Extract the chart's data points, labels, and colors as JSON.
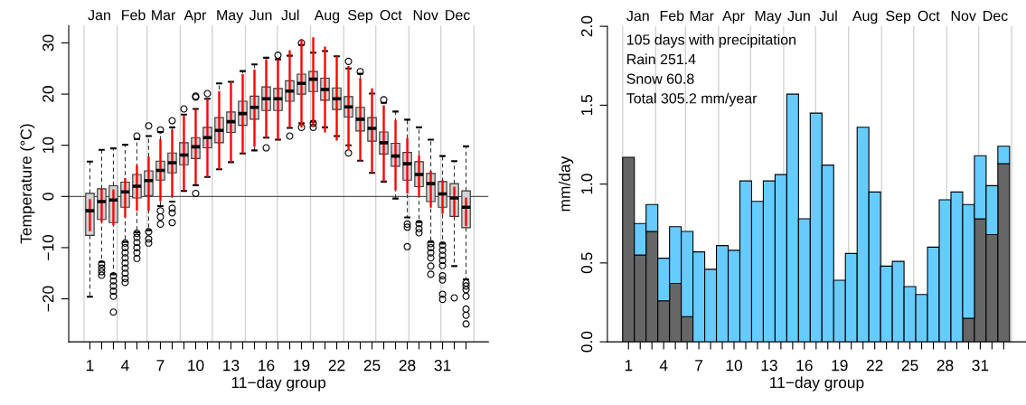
{
  "chart_data": [
    {
      "type": "box",
      "xlabel": "11−day group",
      "ylabel": "Temperature (°C)",
      "xlim": [
        -0.8,
        34.9
      ],
      "ylim": [
        -28.4,
        33.4
      ],
      "xticks": [
        1,
        {
          "value": 2,
          "label": null
        },
        {
          "value": 3,
          "label": null
        },
        4,
        {
          "value": 5,
          "label": null
        },
        {
          "value": 6,
          "label": null
        },
        7,
        {
          "value": 8,
          "label": null
        },
        {
          "value": 9,
          "label": null
        },
        10,
        {
          "value": 11,
          "label": null
        },
        {
          "value": 12,
          "label": null
        },
        13,
        {
          "value": 14,
          "label": null
        },
        {
          "value": 15,
          "label": null
        },
        16,
        {
          "value": 17,
          "label": null
        },
        {
          "value": 18,
          "label": null
        },
        19,
        {
          "value": 20,
          "label": null
        },
        {
          "value": 21,
          "label": null
        },
        22,
        {
          "value": 23,
          "label": null
        },
        {
          "value": 24,
          "label": null
        },
        25,
        {
          "value": 26,
          "label": null
        },
        {
          "value": 27,
          "label": null
        },
        28,
        {
          "value": 29,
          "label": null
        },
        {
          "value": 30,
          "label": null
        },
        31,
        {
          "value": 32,
          "label": null
        },
        {
          "value": 33,
          "label": null
        }
      ],
      "yticks": [
        {
          "value": -20,
          "label": "−20"
        },
        {
          "value": -10,
          "label": "−10"
        },
        0,
        10,
        20,
        30
      ],
      "ref_lines": [
        {
          "axis": "x",
          "value": 0.5,
          "label": "Jan",
          "color": "#d3d3d3"
        },
        {
          "axis": "x",
          "value": 3.32,
          "label": "Feb",
          "color": "#d3d3d3"
        },
        {
          "axis": "x",
          "value": 5.86,
          "label": "Mar",
          "color": "#d3d3d3"
        },
        {
          "axis": "x",
          "value": 8.68,
          "label": "Apr",
          "color": "#d3d3d3"
        },
        {
          "axis": "x",
          "value": 11.41,
          "label": "May",
          "color": "#d3d3d3"
        },
        {
          "axis": "x",
          "value": 14.23,
          "label": "Jun",
          "color": "#d3d3d3"
        },
        {
          "axis": "x",
          "value": 16.95,
          "label": "Jul",
          "color": "#d3d3d3"
        },
        {
          "axis": "x",
          "value": 19.77,
          "label": "Aug",
          "color": "#d3d3d3"
        },
        {
          "axis": "x",
          "value": 22.59,
          "label": "Sep",
          "color": "#d3d3d3"
        },
        {
          "axis": "x",
          "value": 25.32,
          "label": "Oct",
          "color": "#d3d3d3"
        },
        {
          "axis": "x",
          "value": 28.14,
          "label": "Nov",
          "color": "#d3d3d3"
        },
        {
          "axis": "x",
          "value": 30.86,
          "label": "Dec",
          "color": "#d3d3d3"
        },
        {
          "axis": "x",
          "value": 33.68,
          "color": "#d3d3d3"
        },
        {
          "axis": "y",
          "value": 0,
          "color": "#555555"
        }
      ],
      "series": [
        {
          "type": "box",
          "color": "#d3d3d3",
          "x": [
            1,
            2,
            3,
            4,
            5,
            6,
            7,
            8,
            9,
            10,
            11,
            12,
            13,
            14,
            15,
            16,
            17,
            18,
            19,
            20,
            21,
            22,
            23,
            24,
            25,
            26,
            27,
            28,
            29,
            30,
            31,
            32,
            33
          ],
          "boxes": [
            {
              "low": -19.6,
              "q1": -7.6,
              "median": -2.8,
              "q3": 0.6,
              "high": 6.8
            },
            {
              "low": -12.8,
              "q1": -4.5,
              "median": -1.0,
              "q3": 1.5,
              "high": 9.1,
              "outliers": [
                -13.2,
                -14.0,
                -14.7,
                -15.4
              ]
            },
            {
              "low": -15.2,
              "q1": -5.1,
              "median": -0.7,
              "q3": 2.1,
              "high": 9.4,
              "outliers": [
                -15.5,
                -16.5,
                -17.5,
                -18.5,
                -19.5,
                -22.6
              ]
            },
            {
              "low": -8.9,
              "q1": -2.1,
              "median": 0.9,
              "q3": 2.8,
              "high": 10.1,
              "outliers": [
                -9.1,
                -10,
                -11,
                -12,
                -13,
                -14,
                -15,
                -16,
                -16.8
              ]
            },
            {
              "low": -7.0,
              "q1": -0.3,
              "median": 2.0,
              "q3": 4.3,
              "high": 11.2,
              "outliers": [
                11.8,
                -7.2,
                -8,
                -9,
                -10,
                -11,
                -12.1
              ]
            },
            {
              "low": -6.6,
              "q1": 0.2,
              "median": 3.1,
              "q3": 5.0,
              "high": 11.8,
              "outliers": [
                13.8,
                -6.9,
                -8.3,
                -9.1
              ]
            },
            {
              "low": -1.9,
              "q1": 3.2,
              "median": 5.1,
              "q3": 6.9,
              "high": 12.6,
              "outliers": [
                13.0,
                -2.8,
                -4.0,
                -5.4
              ]
            },
            {
              "low": -1.0,
              "q1": 4.6,
              "median": 6.6,
              "q3": 8.5,
              "high": 13.5,
              "outliers": [
                14.8,
                -2.3,
                -3.2,
                -5.1
              ]
            },
            {
              "low": 1.1,
              "q1": 6.2,
              "median": 8.1,
              "q3": 10.5,
              "high": 16.0,
              "outliers": [
                17.1
              ]
            },
            {
              "low": 2.2,
              "q1": 7.4,
              "median": 9.7,
              "q3": 11.5,
              "high": 17.1,
              "outliers": [
                19.6,
                19.4,
                0.6
              ]
            },
            {
              "low": 3.8,
              "q1": 9.5,
              "median": 11.5,
              "q3": 13.5,
              "high": 19.1,
              "outliers": [
                20.1
              ]
            },
            {
              "low": 5.3,
              "q1": 10.5,
              "median": 12.9,
              "q3": 15.4,
              "high": 22.1
            },
            {
              "low": 6.7,
              "q1": 12.5,
              "median": 14.6,
              "q3": 16.5,
              "high": 22.4
            },
            {
              "low": 8.4,
              "q1": 13.9,
              "median": 16.2,
              "q3": 18.6,
              "high": 24.5
            },
            {
              "low": 9.0,
              "q1": 15.1,
              "median": 17.4,
              "q3": 19.6,
              "high": 25.8
            },
            {
              "low": 11.5,
              "q1": 16.8,
              "median": 19.1,
              "q3": 21.4,
              "high": 27.1,
              "outliers": [
                9.5
              ]
            },
            {
              "low": 11.1,
              "q1": 16.8,
              "median": 19.1,
              "q3": 21.1,
              "high": 26.8,
              "outliers": [
                27.6
              ]
            },
            {
              "low": 13.4,
              "q1": 18.6,
              "median": 20.6,
              "q3": 22.6,
              "high": 27.5,
              "outliers": [
                11.8
              ]
            },
            {
              "low": 14.3,
              "q1": 20.0,
              "median": 22.1,
              "q3": 23.9,
              "high": 29.6,
              "outliers": [
                30.0,
                13.5
              ]
            },
            {
              "low": 14.6,
              "q1": 20.5,
              "median": 22.9,
              "q3": 24.4,
              "high": 28.1,
              "outliers": [
                14.3,
                13.5
              ]
            },
            {
              "low": 13.5,
              "q1": 18.8,
              "median": 20.9,
              "q3": 23.1,
              "high": 28.4
            },
            {
              "low": 11.8,
              "q1": 17.0,
              "median": 19.1,
              "q3": 21.2,
              "high": 27.4
            },
            {
              "low": 10.0,
              "q1": 15.5,
              "median": 17.5,
              "q3": 19.5,
              "high": 25.0,
              "outliers": [
                26.4,
                8.5
              ]
            },
            {
              "low": 7.0,
              "q1": 12.8,
              "median": 15.1,
              "q3": 17.4,
              "high": 24.0,
              "outliers": [
                24.4
              ]
            },
            {
              "low": 4.6,
              "q1": 10.8,
              "median": 13.3,
              "q3": 15.4,
              "high": 20.1
            },
            {
              "low": 2.9,
              "q1": 8.3,
              "median": 10.5,
              "q3": 12.6,
              "high": 18.3,
              "outliers": [
                18.9
              ]
            },
            {
              "low": -0.4,
              "q1": 5.9,
              "median": 7.9,
              "q3": 10.4,
              "high": 16.6
            },
            {
              "low": -4.1,
              "q1": 3.2,
              "median": 6.4,
              "q3": 8.6,
              "high": 15.0,
              "outliers": [
                -5.4,
                -6.0,
                -9.8
              ]
            },
            {
              "low": -5.0,
              "q1": 1.9,
              "median": 4.3,
              "q3": 6.8,
              "high": 13.5,
              "outliers": [
                -5.3,
                -6.3,
                -7.1
              ]
            },
            {
              "low": -8.9,
              "q1": -1.0,
              "median": 2.5,
              "q3": 4.5,
              "high": 11.1,
              "outliers": [
                -9.2,
                -10,
                -11,
                -12,
                -13.6,
                -15.2
              ]
            },
            {
              "low": -9.2,
              "q1": -2.1,
              "median": 0.5,
              "q3": 2.9,
              "high": 7.9,
              "outliers": [
                -9.5,
                -10.5,
                -11.5,
                -12.5,
                -13.5,
                -15.5,
                -16.3,
                -19.1,
                -20.1
              ]
            },
            {
              "low": -13.6,
              "q1": -3.9,
              "median": -0.3,
              "q3": 2.5,
              "high": 6.9,
              "outliers": [
                -19.8
              ]
            },
            {
              "low": -16.2,
              "q1": -6.1,
              "median": -2.1,
              "q3": 1.1,
              "high": 9.8,
              "outliers": [
                -16.9,
                -17.5,
                -18.2,
                -19.5,
                -22.0,
                -23.2,
                -24.9
              ]
            }
          ]
        },
        {
          "type": "bar",
          "color": "#ff0000",
          "x": [
            1,
            2,
            3,
            4,
            5,
            6,
            7,
            8,
            9,
            10,
            11,
            12,
            13,
            14,
            15,
            16,
            17,
            18,
            19,
            20,
            21,
            22,
            23,
            24,
            25,
            26,
            27,
            28,
            29,
            30,
            31,
            32,
            33
          ],
          "base": [
            -6.8,
            -5.0,
            -5.6,
            -4.1,
            -2.8,
            -2.8,
            -0.9,
            -0.1,
            1.1,
            2.4,
            3.8,
            5.3,
            6.7,
            8.4,
            9.7,
            11.5,
            11.1,
            13.4,
            13.5,
            13.7,
            12.5,
            10.9,
            9.0,
            7.0,
            4.6,
            2.9,
            1.2,
            0.6,
            0.1,
            -2.2,
            -3.4,
            -3.9,
            -5.8
          ],
          "values": [
            6.3,
            6.5,
            7.0,
            7.7,
            8.9,
            10.6,
            12.1,
            13.2,
            14.7,
            14.7,
            15.3,
            15.3,
            15.7,
            15.5,
            15.1,
            15.3,
            15.7,
            15.2,
            17.3,
            17.4,
            16.8,
            16.5,
            16.5,
            16.1,
            16.5,
            14.9,
            13.7,
            10.8,
            8.0,
            7.2,
            6.6,
            5.8,
            5.6
          ]
        }
      ]
    },
    {
      "type": "bar",
      "stacked": true,
      "xlabel": "11−day group",
      "ylabel": "mm/day",
      "xlim": [
        -0.8,
        34.9
      ],
      "ylim": [
        0,
        2
      ],
      "xticks": [
        1,
        {
          "value": 2,
          "label": null
        },
        {
          "value": 3,
          "label": null
        },
        4,
        {
          "value": 5,
          "label": null
        },
        {
          "value": 6,
          "label": null
        },
        7,
        {
          "value": 8,
          "label": null
        },
        {
          "value": 9,
          "label": null
        },
        10,
        {
          "value": 11,
          "label": null
        },
        {
          "value": 12,
          "label": null
        },
        13,
        {
          "value": 14,
          "label": null
        },
        {
          "value": 15,
          "label": null
        },
        16,
        {
          "value": 17,
          "label": null
        },
        {
          "value": 18,
          "label": null
        },
        19,
        {
          "value": 20,
          "label": null
        },
        {
          "value": 21,
          "label": null
        },
        22,
        {
          "value": 23,
          "label": null
        },
        {
          "value": 24,
          "label": null
        },
        25,
        {
          "value": 26,
          "label": null
        },
        {
          "value": 27,
          "label": null
        },
        28,
        {
          "value": 29,
          "label": null
        },
        {
          "value": 30,
          "label": null
        },
        31,
        {
          "value": 32,
          "label": null
        },
        {
          "value": 33,
          "label": null
        }
      ],
      "yticks": [
        {
          "value": 0,
          "label": "0.0"
        },
        {
          "value": 0.5,
          "label": "0.5"
        },
        {
          "value": 1,
          "label": "1.0"
        },
        {
          "value": 1.5,
          "label": "1.5"
        },
        {
          "value": 2,
          "label": "2.0"
        }
      ],
      "ref_lines": [
        {
          "axis": "x",
          "value": 0.5,
          "label": "Jan",
          "color": "#d3d3d3"
        },
        {
          "axis": "x",
          "value": 3.32,
          "label": "Feb",
          "color": "#d3d3d3"
        },
        {
          "axis": "x",
          "value": 5.86,
          "label": "Mar",
          "color": "#d3d3d3"
        },
        {
          "axis": "x",
          "value": 8.68,
          "label": "Apr",
          "color": "#d3d3d3"
        },
        {
          "axis": "x",
          "value": 11.41,
          "label": "May",
          "color": "#d3d3d3"
        },
        {
          "axis": "x",
          "value": 14.23,
          "label": "Jun",
          "color": "#d3d3d3"
        },
        {
          "axis": "x",
          "value": 16.95,
          "label": "Jul",
          "color": "#d3d3d3"
        },
        {
          "axis": "x",
          "value": 19.77,
          "label": "Aug",
          "color": "#d3d3d3"
        },
        {
          "axis": "x",
          "value": 22.59,
          "label": "Sep",
          "color": "#d3d3d3"
        },
        {
          "axis": "x",
          "value": 25.32,
          "label": "Oct",
          "color": "#d3d3d3"
        },
        {
          "axis": "x",
          "value": 28.14,
          "label": "Nov",
          "color": "#d3d3d3"
        },
        {
          "axis": "x",
          "value": 30.86,
          "label": "Dec",
          "color": "#d3d3d3"
        },
        {
          "axis": "x",
          "value": 33.68,
          "color": "#d3d3d3"
        }
      ],
      "x": [
        1,
        2,
        3,
        4,
        5,
        6,
        7,
        8,
        9,
        10,
        11,
        12,
        13,
        14,
        15,
        16,
        17,
        18,
        19,
        20,
        21,
        22,
        23,
        24,
        25,
        26,
        27,
        28,
        29,
        30,
        31,
        32,
        33
      ],
      "annotations": [
        "105 days with precipitation",
        "Rain 251.4",
        "Snow 60.8",
        "Total 305.2 mm/year"
      ],
      "series": [
        {
          "color": "#666666",
          "values": [
            1.17,
            0.55,
            0.7,
            0.26,
            0.37,
            0.16,
            null,
            null,
            null,
            null,
            null,
            null,
            null,
            null,
            null,
            null,
            null,
            null,
            null,
            null,
            null,
            null,
            null,
            null,
            null,
            null,
            null,
            null,
            null,
            0.15,
            0.78,
            0.68,
            1.13
          ]
        },
        {
          "color": "#66ccff",
          "values": [
            null,
            0.2,
            0.17,
            0.27,
            0.36,
            0.54,
            0.57,
            0.46,
            0.61,
            0.58,
            1.02,
            0.89,
            1.02,
            1.06,
            1.57,
            0.78,
            1.45,
            1.12,
            0.39,
            0.56,
            1.36,
            0.95,
            0.48,
            0.51,
            0.35,
            0.3,
            0.6,
            0.9,
            0.95,
            0.72,
            0.4,
            0.31,
            0.11
          ]
        }
      ]
    }
  ]
}
